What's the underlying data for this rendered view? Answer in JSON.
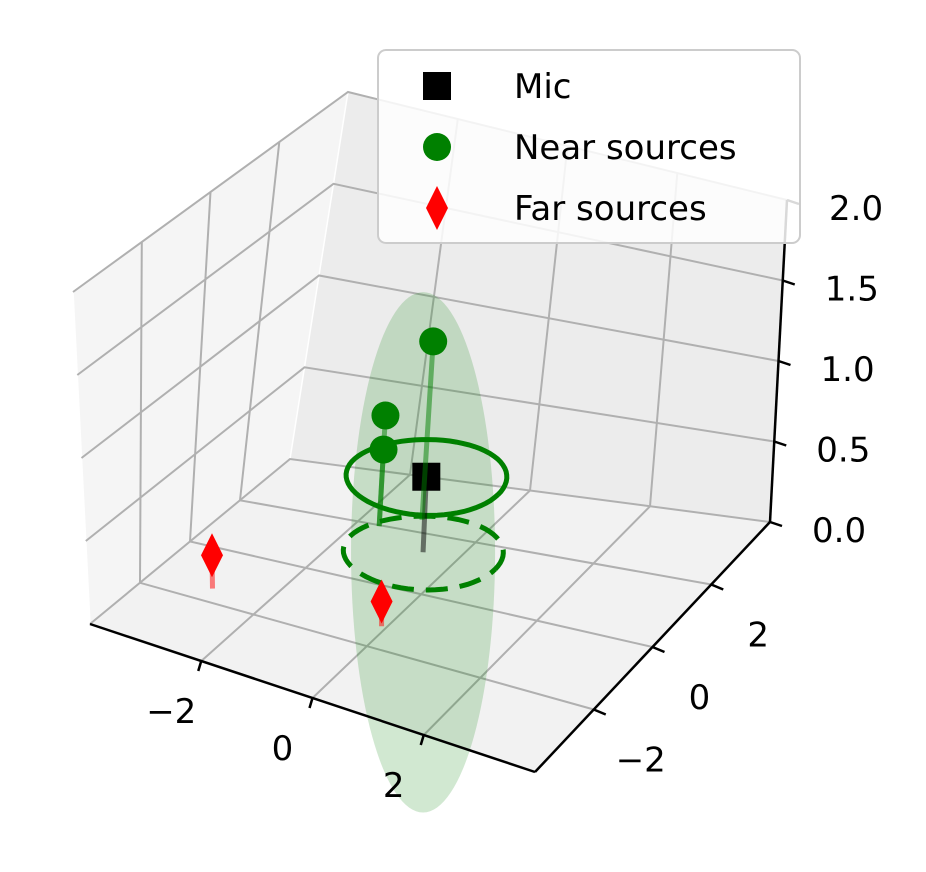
{
  "chart_data": {
    "type": "scatter",
    "projection": "3d",
    "title": "",
    "xlabel": "",
    "ylabel": "",
    "zlabel": "",
    "grid": true,
    "xlim": [
      -4,
      4
    ],
    "ylim": [
      -4,
      4
    ],
    "zlim": [
      0,
      2
    ],
    "x_ticks": [
      {
        "value": -2,
        "label": "−2"
      },
      {
        "value": 0,
        "label": "0"
      },
      {
        "value": 2,
        "label": "2"
      }
    ],
    "y_ticks": [
      {
        "value": -2,
        "label": "−2"
      },
      {
        "value": 0,
        "label": "0"
      },
      {
        "value": 2,
        "label": "2"
      }
    ],
    "z_ticks": [
      {
        "value": 0,
        "label": "0.0"
      },
      {
        "value": 0.5,
        "label": "0.5"
      },
      {
        "value": 1,
        "label": "1.0"
      },
      {
        "value": 1.5,
        "label": "1.5"
      },
      {
        "value": 2,
        "label": "2.0"
      }
    ],
    "legend": {
      "position": "top-right",
      "entries": [
        {
          "label": "Mic",
          "marker": "square",
          "color": "#000000"
        },
        {
          "label": "Near sources",
          "marker": "circle",
          "color": "#008000"
        },
        {
          "label": "Far sources",
          "marker": "diamond",
          "color": "#ff0000"
        }
      ]
    },
    "series": [
      {
        "name": "Mic",
        "marker": "square",
        "color": "#000000",
        "points": [
          {
            "x": 0,
            "y": 0,
            "z": 0.7
          }
        ]
      },
      {
        "name": "Near sources",
        "marker": "circle",
        "color": "#008000",
        "points": [
          {
            "x": -0.5,
            "y": 1.0,
            "z": 1.3
          },
          {
            "x": -1.0,
            "y": 0.5,
            "z": 0.9
          },
          {
            "x": -1.0,
            "y": 0.5,
            "z": 0.7
          }
        ]
      },
      {
        "name": "Far sources",
        "marker": "diamond",
        "color": "#ff0000",
        "points": [
          {
            "x": -2.3,
            "y": -2.9,
            "z": 0.45
          },
          {
            "x": 0.5,
            "y": -2.5,
            "z": 0.4
          }
        ]
      }
    ],
    "ellipsoid": {
      "center": [
        0,
        0,
        0.25
      ],
      "radius_xy": 1.25,
      "radius_z": 1.55,
      "color": "#008000",
      "alpha": 0.18
    },
    "circles": [
      {
        "style": "solid",
        "center": [
          0,
          0,
          0.7
        ],
        "radius": 1.25,
        "color": "#008000"
      },
      {
        "style": "dashed",
        "center": [
          0,
          0,
          0.25
        ],
        "radius": 1.25,
        "color": "#008000"
      }
    ]
  }
}
